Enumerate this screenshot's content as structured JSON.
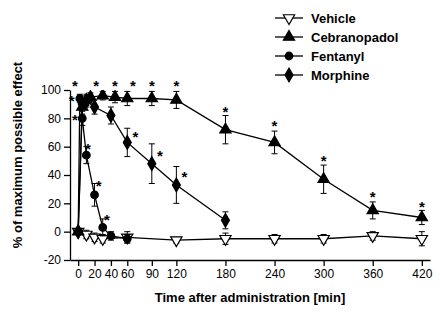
{
  "chart_data": {
    "type": "line",
    "x_label": "Time after administration [min]",
    "y_label": "% of maximum possible effect",
    "xlim": [
      -10,
      430
    ],
    "ylim": [
      -20,
      100
    ],
    "xticks": [
      0,
      20,
      40,
      60,
      90,
      120,
      180,
      240,
      300,
      360,
      420
    ],
    "yticks": [
      -20,
      0,
      20,
      40,
      60,
      80,
      100
    ],
    "legend": "top-right",
    "series": [
      {
        "name": "Vehicle",
        "color": "#000000",
        "marker": "triangle-down-open",
        "line_style": "solid",
        "x": [
          0,
          10,
          20,
          30,
          60,
          120,
          180,
          240,
          300,
          360,
          420
        ],
        "values": [
          0,
          -2,
          -4,
          -5,
          -4,
          -6,
          -5,
          -5,
          -5,
          -3,
          -5
        ],
        "errors": [
          2,
          3,
          3,
          3,
          4,
          2,
          4,
          3,
          3,
          3,
          5
        ]
      },
      {
        "name": "Cebranopadol",
        "color": "#000000",
        "marker": "triangle-up",
        "line_style": "solid",
        "x": [
          0,
          5,
          10,
          15,
          30,
          45,
          60,
          90,
          120,
          180,
          240,
          300,
          360,
          420
        ],
        "values": [
          0,
          88,
          93,
          95,
          96,
          95,
          94,
          94,
          93,
          72,
          63,
          37,
          15,
          10
        ],
        "errors": [
          2,
          5,
          4,
          3,
          3,
          4,
          5,
          5,
          6,
          10,
          8,
          10,
          6,
          5
        ]
      },
      {
        "name": "Fentanyl",
        "color": "#000000",
        "marker": "circle",
        "line_style": "solid",
        "x": [
          0,
          2,
          5,
          10,
          20,
          30,
          40,
          60
        ],
        "values": [
          0,
          94,
          80,
          54,
          26,
          3,
          -3,
          -5
        ],
        "errors": [
          2,
          3,
          5,
          6,
          8,
          6,
          3,
          3
        ]
      },
      {
        "name": "Morphine",
        "color": "#000000",
        "marker": "diamond",
        "line_style": "solid",
        "x": [
          0,
          5,
          10,
          20,
          40,
          60,
          90,
          120,
          180
        ],
        "values": [
          0,
          90,
          92,
          88,
          82,
          63,
          48,
          33,
          8
        ],
        "errors": [
          2,
          4,
          4,
          5,
          6,
          10,
          14,
          13,
          6
        ]
      }
    ],
    "annotations": [
      {
        "text": "*",
        "x": -4,
        "y": 104
      },
      {
        "text": "*",
        "x": 22,
        "y": 104
      },
      {
        "text": "*",
        "x": 45,
        "y": 104
      },
      {
        "text": "*",
        "x": 67,
        "y": 104
      },
      {
        "text": "*",
        "x": 90,
        "y": 104
      },
      {
        "text": "*",
        "x": 120,
        "y": 104
      },
      {
        "text": "*",
        "x": -8,
        "y": 94
      },
      {
        "text": "*",
        "x": -4,
        "y": 80
      },
      {
        "text": "*",
        "x": 12,
        "y": 60
      },
      {
        "text": "*",
        "x": 25,
        "y": 34
      },
      {
        "text": "*",
        "x": 35,
        "y": 10
      },
      {
        "text": "*",
        "x": 70,
        "y": 68
      },
      {
        "text": "*",
        "x": 100,
        "y": 55
      },
      {
        "text": "*",
        "x": 130,
        "y": 40
      },
      {
        "text": "*",
        "x": 180,
        "y": 86
      },
      {
        "text": "*",
        "x": 240,
        "y": 76
      },
      {
        "text": "*",
        "x": 300,
        "y": 51
      },
      {
        "text": "*",
        "x": 360,
        "y": 26
      },
      {
        "text": "*",
        "x": 420,
        "y": 19
      }
    ]
  }
}
